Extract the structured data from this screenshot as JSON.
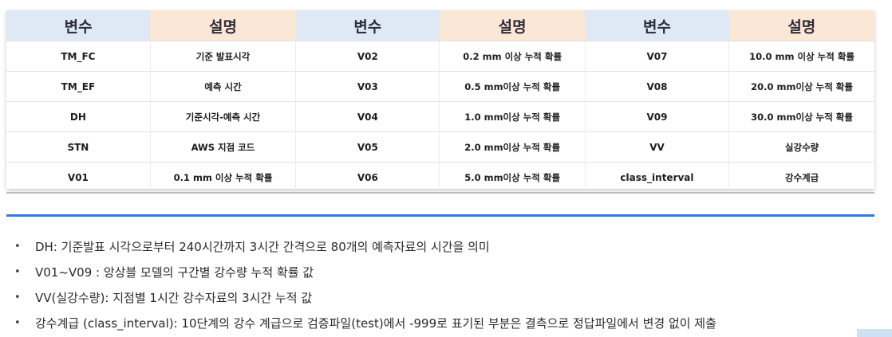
{
  "table": {
    "headers": [
      "변수",
      "설명",
      "변수",
      "설명",
      "변수",
      "설명"
    ],
    "rows": [
      [
        "TM_FC",
        "기준 발표시각",
        "V02",
        "0.2 mm 이상 누적 확률",
        "V07",
        "10.0 mm 이상 누적 확률"
      ],
      [
        "TM_EF",
        "예측 시간",
        "V03",
        "0.5 mm이상 누적 확률",
        "V08",
        "20.0 mm이상 누적 확률"
      ],
      [
        "DH",
        "기준시각-예측 시간",
        "V04",
        "1.0 mm이상 누적 확률",
        "V09",
        "30.0 mm이상 누적 확률"
      ],
      [
        "STN",
        "AWS 지점 코드",
        "V05",
        "2.0 mm이상 누적 확률",
        "VV",
        "실강수량"
      ],
      [
        "V01",
        "0.1 mm 이상 누적 확률",
        "V06",
        "5.0 mm이상 누적 확률",
        "class_interval",
        "강수계급"
      ]
    ]
  },
  "notes": {
    "bullet": "•",
    "items": [
      "DH: 기준발표 시각으로부터 240시간까지 3시간 간격으로 80개의 예측자료의 시간을 의미",
      "V01~V09 : 앙상블 모델의 구간별 강수량 누적 확률 값",
      "VV(실강수량): 지점별 1시간 강수자료의 3시간 누적 값",
      "강수계급 (class_interval): 10단계의 강수 계급으로 검증파일(test)에서 -999로 표기된 부분은 결측으로 정답파일에서 변경 없이 제출"
    ]
  },
  "colors": {
    "header_variable_bg": "#dfe9f5",
    "header_description_bg": "#fbe7d6",
    "divider": "#2f78e8"
  }
}
